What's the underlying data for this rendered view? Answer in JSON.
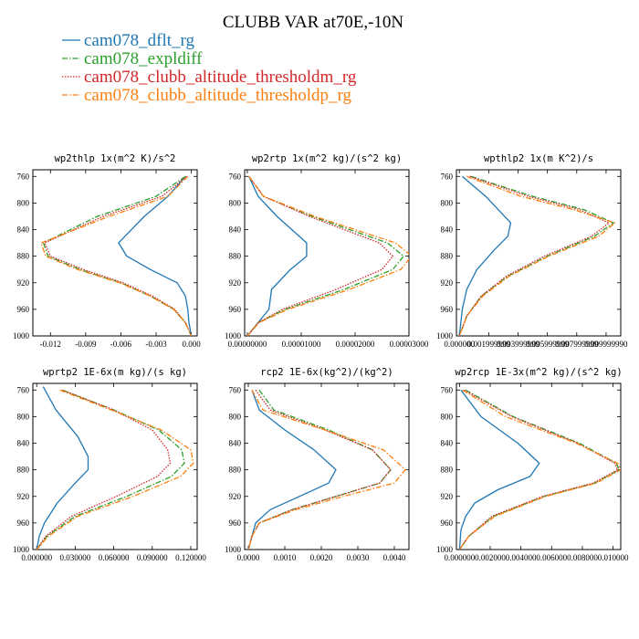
{
  "title": "CLUBB VAR at70E,-10N",
  "legend": [
    {
      "label": "cam078_dflt_rg",
      "color": "#1f77b4",
      "dash": "solid"
    },
    {
      "label": "cam078_expldiff",
      "color": "#2ca02c",
      "dash": "dashdot"
    },
    {
      "label": "cam078_clubb_altitude_thresholdm_rg",
      "color": "#d62728",
      "dash": "dotted"
    },
    {
      "label": "cam078_clubb_altitude_thresholdp_rg",
      "color": "#ff7f0e",
      "dash": "dashdot"
    }
  ],
  "chart_data": [
    {
      "type": "line",
      "title": "wp2thlp  1x(m^2 K)/s^2",
      "xlim": [
        -0.0135,
        0.0005
      ],
      "ylim": [
        1000,
        750
      ],
      "xticks": [
        -0.012,
        -0.009,
        -0.006,
        -0.003,
        0.0
      ],
      "xticklabels": [
        "-0.012",
        "-0.009",
        "-0.006",
        "-0.003",
        "0.000"
      ],
      "yticks": [
        760,
        800,
        840,
        880,
        920,
        960,
        1000
      ],
      "yticklabels": [
        "760",
        "800",
        "840",
        "880",
        "920",
        "960",
        "1000"
      ],
      "series": [
        {
          "name": "cam078_dflt_rg",
          "y": [
            760,
            790,
            820,
            860,
            880,
            900,
            920,
            940,
            960,
            980,
            1000
          ],
          "x": [
            -0.0005,
            -0.002,
            -0.004,
            -0.0062,
            -0.0055,
            -0.0035,
            -0.0012,
            -0.0005,
            -0.0003,
            -0.0002,
            0.0
          ]
        },
        {
          "name": "cam078_expldiff",
          "y": [
            760,
            790,
            820,
            860,
            880,
            900,
            920,
            940,
            960,
            980,
            1000
          ],
          "x": [
            -0.0005,
            -0.003,
            -0.008,
            -0.0126,
            -0.0122,
            -0.0095,
            -0.006,
            -0.0035,
            -0.0015,
            -0.0005,
            0.0
          ]
        },
        {
          "name": "cam078_clubb_altitude_thresholdm_rg",
          "y": [
            760,
            790,
            820,
            860,
            880,
            900,
            920,
            940,
            960,
            980,
            1000
          ],
          "x": [
            -0.0004,
            -0.0025,
            -0.0075,
            -0.0125,
            -0.012,
            -0.0092,
            -0.0058,
            -0.0033,
            -0.0014,
            -0.0005,
            0.0
          ]
        },
        {
          "name": "cam078_clubb_altitude_thresholdp_rg",
          "y": [
            760,
            790,
            820,
            860,
            880,
            900,
            920,
            940,
            960,
            980,
            1000
          ],
          "x": [
            -0.0003,
            -0.002,
            -0.007,
            -0.0128,
            -0.0124,
            -0.0097,
            -0.0061,
            -0.0035,
            -0.0015,
            -0.0005,
            0.0
          ]
        }
      ]
    },
    {
      "type": "line",
      "title": "wp2rtp  1x(m^2 kg)/(s^2 kg)",
      "xlim": [
        -5e-07,
        3e-05
      ],
      "ylim": [
        1000,
        750
      ],
      "xticks": [
        0.0,
        1e-05,
        2e-05,
        3e-05
      ],
      "xticklabels": [
        "0.00000000",
        "0.00001000",
        "0.00002000",
        "0.00003000"
      ],
      "yticks": [
        760,
        800,
        840,
        880,
        920,
        960,
        1000
      ],
      "yticklabels": [
        "760",
        "800",
        "840",
        "880",
        "920",
        "960",
        "1000"
      ],
      "series": [
        {
          "name": "cam078_dflt_rg",
          "y": [
            760,
            790,
            820,
            860,
            880,
            900,
            930,
            960,
            980,
            1000
          ],
          "x": [
            3e-07,
            2e-06,
            5.5e-06,
            1.1e-05,
            1.1e-05,
            8e-06,
            4.5e-06,
            4e-06,
            2e-06,
            0.0
          ]
        },
        {
          "name": "cam078_expldiff",
          "y": [
            760,
            790,
            820,
            860,
            880,
            900,
            930,
            960,
            980,
            1000
          ],
          "x": [
            3e-07,
            3e-06,
            1.2e-05,
            2.6e-05,
            2.9e-05,
            2.7e-05,
            1.8e-05,
            7e-06,
            2e-06,
            0.0
          ]
        },
        {
          "name": "cam078_clubb_altitude_thresholdm_rg",
          "y": [
            760,
            790,
            820,
            860,
            880,
            900,
            930,
            960,
            980,
            1000
          ],
          "x": [
            3e-07,
            3e-06,
            1.15e-05,
            2.45e-05,
            2.7e-05,
            2.5e-05,
            1.65e-05,
            6.5e-06,
            2e-06,
            0.0
          ]
        },
        {
          "name": "cam078_clubb_altitude_thresholdp_rg",
          "y": [
            760,
            790,
            820,
            860,
            880,
            900,
            930,
            960,
            980,
            1000
          ],
          "x": [
            3e-07,
            3e-06,
            1.25e-05,
            2.75e-05,
            3.05e-05,
            2.85e-05,
            1.9e-05,
            7.5e-06,
            2.2e-06,
            0.0
          ]
        }
      ]
    },
    {
      "type": "line",
      "title": "wpthlp2  1x(m K^2)/s",
      "xlim": [
        -0.0002,
        0.011
      ],
      "ylim": [
        1000,
        750
      ],
      "xticks": [
        0.0,
        0.002,
        0.004,
        0.006,
        0.008,
        0.01
      ],
      "xticklabels": [
        "0.000000",
        "0.001999999",
        "0.003999999",
        "0.005999999",
        "0.007999999",
        "0.009999990"
      ],
      "yticks": [
        760,
        800,
        840,
        880,
        920,
        960,
        1000
      ],
      "yticklabels": [
        "760",
        "800",
        "840",
        "880",
        "920",
        "960",
        "1000"
      ],
      "series": [
        {
          "name": "cam078_dflt_rg",
          "y": [
            760,
            790,
            830,
            850,
            870,
            900,
            930,
            960,
            980,
            1000
          ],
          "x": [
            0.0002,
            0.0018,
            0.0035,
            0.0033,
            0.0024,
            0.0012,
            0.0005,
            0.0002,
            0.0001,
            0.0
          ]
        },
        {
          "name": "cam078_expldiff",
          "y": [
            760,
            790,
            810,
            830,
            850,
            880,
            910,
            940,
            970,
            1000
          ],
          "x": [
            0.0008,
            0.005,
            0.0085,
            0.0105,
            0.0092,
            0.006,
            0.0033,
            0.0015,
            0.0005,
            0.0
          ]
        },
        {
          "name": "cam078_clubb_altitude_thresholdm_rg",
          "y": [
            760,
            790,
            810,
            830,
            850,
            880,
            910,
            940,
            970,
            1000
          ],
          "x": [
            0.0007,
            0.0047,
            0.0082,
            0.0102,
            0.009,
            0.0058,
            0.0032,
            0.0015,
            0.0005,
            0.0
          ]
        },
        {
          "name": "cam078_clubb_altitude_thresholdp_rg",
          "y": [
            760,
            790,
            810,
            830,
            850,
            880,
            910,
            940,
            970,
            1000
          ],
          "x": [
            0.0005,
            0.0042,
            0.0078,
            0.0106,
            0.0095,
            0.0061,
            0.0034,
            0.0016,
            0.0005,
            0.0
          ]
        }
      ]
    },
    {
      "type": "line",
      "title": "wprtp2  1E-6x(m kg)/(s kg)",
      "xlim": [
        -0.003,
        0.125
      ],
      "ylim": [
        1000,
        750
      ],
      "xticks": [
        0.0,
        0.03,
        0.06,
        0.09,
        0.12
      ],
      "xticklabels": [
        "0.000000",
        "0.030000",
        "0.060000",
        "0.090000",
        "0.120000"
      ],
      "yticks": [
        760,
        800,
        840,
        880,
        920,
        960,
        1000
      ],
      "yticklabels": [
        "760",
        "800",
        "840",
        "880",
        "920",
        "960",
        "1000"
      ],
      "series": [
        {
          "name": "cam078_dflt_rg",
          "y": [
            755,
            790,
            830,
            860,
            880,
            900,
            930,
            960,
            980,
            1000
          ],
          "x": [
            0.005,
            0.015,
            0.032,
            0.04,
            0.04,
            0.03,
            0.016,
            0.006,
            0.002,
            0.0
          ]
        },
        {
          "name": "cam078_expldiff",
          "y": [
            760,
            790,
            820,
            850,
            870,
            890,
            920,
            950,
            980,
            1000
          ],
          "x": [
            0.02,
            0.06,
            0.095,
            0.113,
            0.115,
            0.105,
            0.07,
            0.03,
            0.008,
            0.0
          ]
        },
        {
          "name": "cam078_clubb_altitude_thresholdm_rg",
          "y": [
            760,
            790,
            820,
            850,
            870,
            890,
            920,
            950,
            980,
            1000
          ],
          "x": [
            0.02,
            0.06,
            0.09,
            0.102,
            0.104,
            0.094,
            0.062,
            0.027,
            0.007,
            0.0
          ]
        },
        {
          "name": "cam078_clubb_altitude_thresholdp_rg",
          "y": [
            760,
            790,
            820,
            850,
            870,
            890,
            920,
            950,
            980,
            1000
          ],
          "x": [
            0.018,
            0.058,
            0.097,
            0.12,
            0.122,
            0.112,
            0.075,
            0.032,
            0.009,
            0.0
          ]
        }
      ]
    },
    {
      "type": "line",
      "title": "rcp2  1E-6x(kg^2)/(kg^2)",
      "xlim": [
        -0.0001,
        0.0044
      ],
      "ylim": [
        1000,
        750
      ],
      "xticks": [
        0.0,
        0.001,
        0.002,
        0.003,
        0.004
      ],
      "xticklabels": [
        "0.0000",
        "0.0010",
        "0.0020",
        "0.0030",
        "0.0040"
      ],
      "yticks": [
        760,
        800,
        840,
        880,
        920,
        960,
        1000
      ],
      "yticklabels": [
        "760",
        "800",
        "840",
        "880",
        "920",
        "960",
        "1000"
      ],
      "series": [
        {
          "name": "cam078_dflt_rg",
          "y": [
            760,
            790,
            820,
            850,
            880,
            900,
            920,
            940,
            960,
            980,
            1000
          ],
          "x": [
            0.0001,
            0.0003,
            0.001,
            0.0018,
            0.0024,
            0.0022,
            0.0014,
            0.0006,
            0.0002,
            0.0001,
            0.0
          ]
        },
        {
          "name": "cam078_expldiff",
          "y": [
            760,
            790,
            820,
            850,
            880,
            900,
            920,
            940,
            960,
            980,
            1000
          ],
          "x": [
            0.0003,
            0.0007,
            0.0022,
            0.0034,
            0.0039,
            0.0036,
            0.0024,
            0.0012,
            0.0003,
            0.0001,
            0.0
          ]
        },
        {
          "name": "cam078_clubb_altitude_thresholdm_rg",
          "y": [
            760,
            790,
            820,
            850,
            880,
            900,
            920,
            940,
            960,
            980,
            1000
          ],
          "x": [
            0.0002,
            0.0006,
            0.0021,
            0.0034,
            0.0039,
            0.0036,
            0.0024,
            0.0012,
            0.0003,
            0.0001,
            0.0
          ]
        },
        {
          "name": "cam078_clubb_altitude_thresholdp_rg",
          "y": [
            760,
            790,
            820,
            850,
            880,
            900,
            920,
            940,
            960,
            980,
            1000
          ],
          "x": [
            0.0001,
            0.0004,
            0.0021,
            0.0037,
            0.0043,
            0.004,
            0.0026,
            0.0013,
            0.0003,
            0.0001,
            0.0
          ]
        }
      ]
    },
    {
      "type": "line",
      "title": "wp2rcp  1E-3x(m^2 kg)/(s^2 kg)",
      "xlim": [
        -0.0002,
        0.0105
      ],
      "ylim": [
        1000,
        750
      ],
      "xticks": [
        0.0,
        0.002,
        0.004,
        0.006,
        0.008,
        0.01
      ],
      "xticklabels": [
        "0.000000",
        "0.002000",
        "0.004000",
        "0.006000",
        "0.008000",
        "0.010000"
      ],
      "yticks": [
        760,
        800,
        840,
        880,
        920,
        960,
        1000
      ],
      "yticklabels": [
        "760",
        "800",
        "840",
        "880",
        "920",
        "960",
        "1000"
      ],
      "series": [
        {
          "name": "cam078_dflt_rg",
          "y": [
            760,
            800,
            840,
            870,
            890,
            910,
            930,
            950,
            970,
            1000
          ],
          "x": [
            0.0001,
            0.0014,
            0.0038,
            0.0052,
            0.0046,
            0.0025,
            0.001,
            0.0004,
            0.0001,
            0.0
          ]
        },
        {
          "name": "cam078_expldiff",
          "y": [
            760,
            800,
            840,
            870,
            880,
            900,
            920,
            950,
            980,
            1000
          ],
          "x": [
            0.0004,
            0.0035,
            0.0078,
            0.0102,
            0.0104,
            0.0088,
            0.0055,
            0.0022,
            0.0006,
            0.0
          ]
        },
        {
          "name": "cam078_clubb_altitude_thresholdm_rg",
          "y": [
            760,
            800,
            840,
            870,
            880,
            900,
            920,
            950,
            980,
            1000
          ],
          "x": [
            0.0003,
            0.0034,
            0.0077,
            0.0101,
            0.0103,
            0.0087,
            0.0054,
            0.0021,
            0.0006,
            0.0
          ]
        },
        {
          "name": "cam078_clubb_altitude_thresholdp_rg",
          "y": [
            760,
            800,
            840,
            870,
            880,
            900,
            920,
            950,
            980,
            1000
          ],
          "x": [
            0.0002,
            0.003,
            0.0076,
            0.0103,
            0.0105,
            0.0089,
            0.0056,
            0.0023,
            0.0006,
            0.0
          ]
        }
      ]
    }
  ]
}
